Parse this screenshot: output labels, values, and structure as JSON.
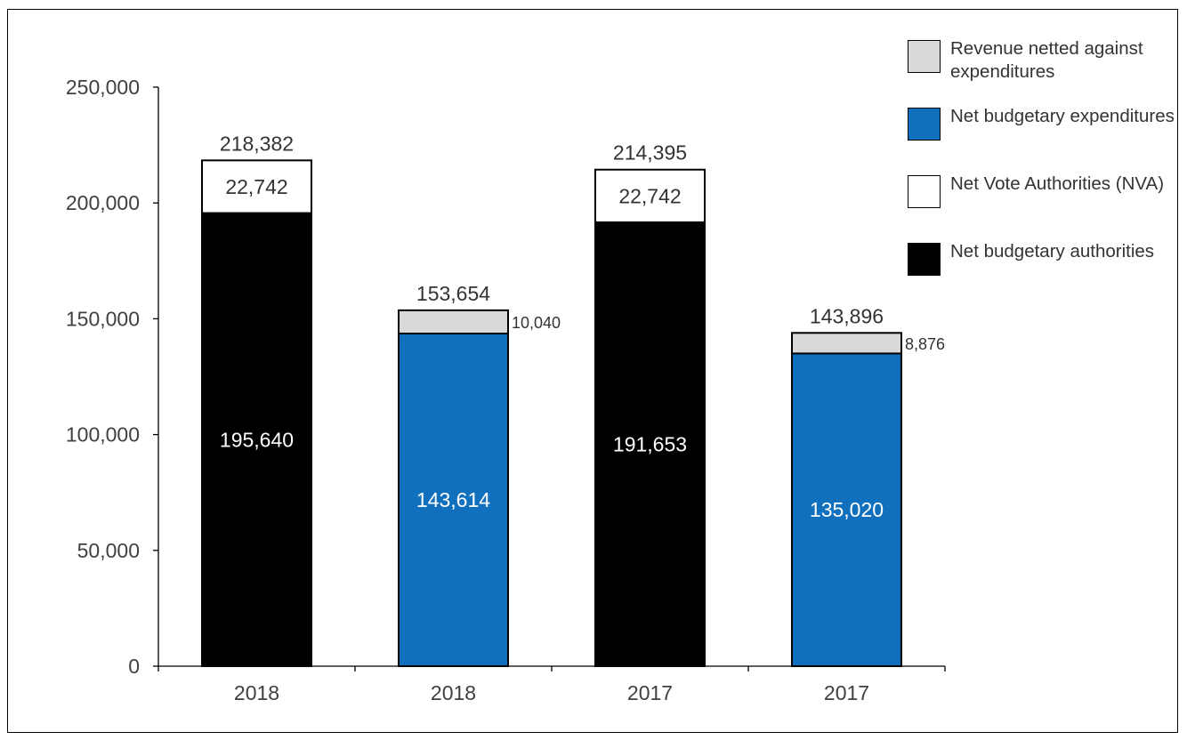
{
  "chart_data": {
    "type": "stacked-bar",
    "title": "",
    "xlabel": "",
    "ylabel": "",
    "ylim": [
      0,
      250000
    ],
    "yticks": [
      0,
      50000,
      100000,
      150000,
      200000,
      250000
    ],
    "ytick_labels": [
      "0",
      "50,000",
      "100,000",
      "150,000",
      "200,000",
      "250,000"
    ],
    "categories": [
      "2018",
      "2018",
      "2017",
      "2017"
    ],
    "grid": false,
    "legend_position": "top-right",
    "series": [
      {
        "name": "Net budgetary authorities",
        "color": "#000000",
        "values": [
          195640,
          null,
          191653,
          null
        ],
        "labels": [
          "195,640",
          null,
          "191,653",
          null
        ]
      },
      {
        "name": "Net Vote Authorities (NVA)",
        "color": "#FFFFFF",
        "values": [
          22742,
          null,
          22742,
          null
        ],
        "labels": [
          "22,742",
          null,
          "22,742",
          null
        ]
      },
      {
        "name": "Net budgetary expenditures",
        "color": "#1170BE",
        "values": [
          null,
          143614,
          null,
          135020
        ],
        "labels": [
          null,
          "143,614",
          null,
          "135,020"
        ]
      },
      {
        "name": "Revenue netted against expenditures",
        "color": "#D9D9D9",
        "values": [
          null,
          10040,
          null,
          8876
        ],
        "labels": [
          null,
          "10,040",
          null,
          "8,876"
        ]
      }
    ],
    "totals": [
      218382,
      153654,
      214395,
      143896
    ],
    "total_labels": [
      "218,382",
      "153,654",
      "214,395",
      "143,896"
    ],
    "legend": [
      {
        "label": "Revenue netted against expenditures",
        "color": "#D9D9D9"
      },
      {
        "label": "Net budgetary expenditures",
        "color": "#1170BE"
      },
      {
        "label": "Net Vote Authorities (NVA)",
        "color": "#FFFFFF"
      },
      {
        "label": "Net budgetary authorities",
        "color": "#000000"
      }
    ]
  }
}
